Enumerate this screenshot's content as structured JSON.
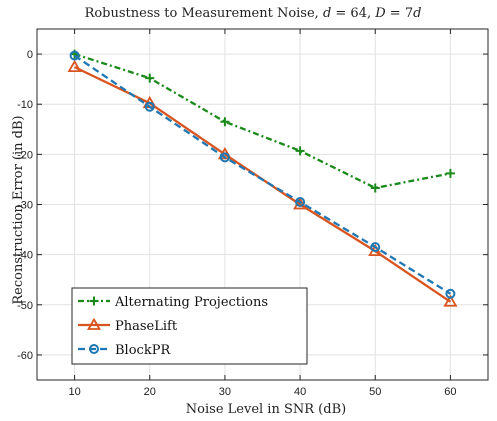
{
  "chart_data": {
    "type": "line",
    "title_parts": [
      "Robustness to Measurement Noise, ",
      "d",
      " = 64, ",
      "D",
      " = 7",
      "d"
    ],
    "xlabel": "Noise Level in SNR (dB)",
    "ylabel": "Reconstruction Error (in dB)",
    "x": [
      10,
      20,
      30,
      40,
      50,
      60
    ],
    "xlim": [
      5,
      65
    ],
    "ylim": [
      -65,
      5
    ],
    "xticks": [
      10,
      20,
      30,
      40,
      50,
      60
    ],
    "yticks": [
      0,
      -10,
      -20,
      -30,
      -40,
      -50,
      -60
    ],
    "grid": true,
    "legend_position": "bottom-left",
    "series": [
      {
        "name": "Alternating Projections",
        "color": "#1a8a1a",
        "dash": "6,3,2,3",
        "marker": "plus",
        "values": [
          0,
          -4.8,
          -13.5,
          -19.3,
          -26.7,
          -23.8
        ]
      },
      {
        "name": "PhaseLift",
        "color": "#d9541e",
        "dash": "",
        "marker": "triangle",
        "values": [
          -2.6,
          -9.8,
          -20.0,
          -30.0,
          -39.3,
          -49.4
        ]
      },
      {
        "name": "BlockPR",
        "color": "#1f77b4",
        "dash": "7,4",
        "marker": "circle",
        "values": [
          -0.3,
          -10.5,
          -20.6,
          -29.5,
          -38.5,
          -47.8
        ]
      }
    ]
  }
}
